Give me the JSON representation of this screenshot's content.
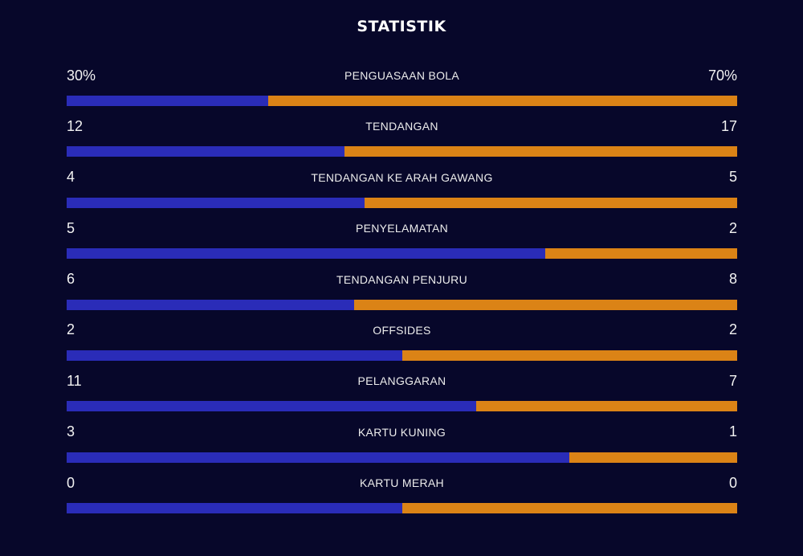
{
  "title": "STATISTIK",
  "colors": {
    "background": "#07072a",
    "home_bar": "#2a2cb8",
    "away_bar": "#db8316"
  },
  "stats": [
    {
      "label": "PENGUASAAN BOLA",
      "home": "30%",
      "away": "70%",
      "home_share": 0.3
    },
    {
      "label": "TENDANGAN",
      "home": "12",
      "away": "17",
      "home_share": 0.4138
    },
    {
      "label": "TENDANGAN KE ARAH GAWANG",
      "home": "4",
      "away": "5",
      "home_share": 0.4444
    },
    {
      "label": "PENYELAMATAN",
      "home": "5",
      "away": "2",
      "home_share": 0.7143
    },
    {
      "label": "TENDANGAN PENJURU",
      "home": "6",
      "away": "8",
      "home_share": 0.4286
    },
    {
      "label": "OFFSIDES",
      "home": "2",
      "away": "2",
      "home_share": 0.5
    },
    {
      "label": "PELANGGARAN",
      "home": "11",
      "away": "7",
      "home_share": 0.6111
    },
    {
      "label": "KARTU KUNING",
      "home": "3",
      "away": "1",
      "home_share": 0.75
    },
    {
      "label": "KARTU MERAH",
      "home": "0",
      "away": "0",
      "home_share": 0.5
    }
  ]
}
